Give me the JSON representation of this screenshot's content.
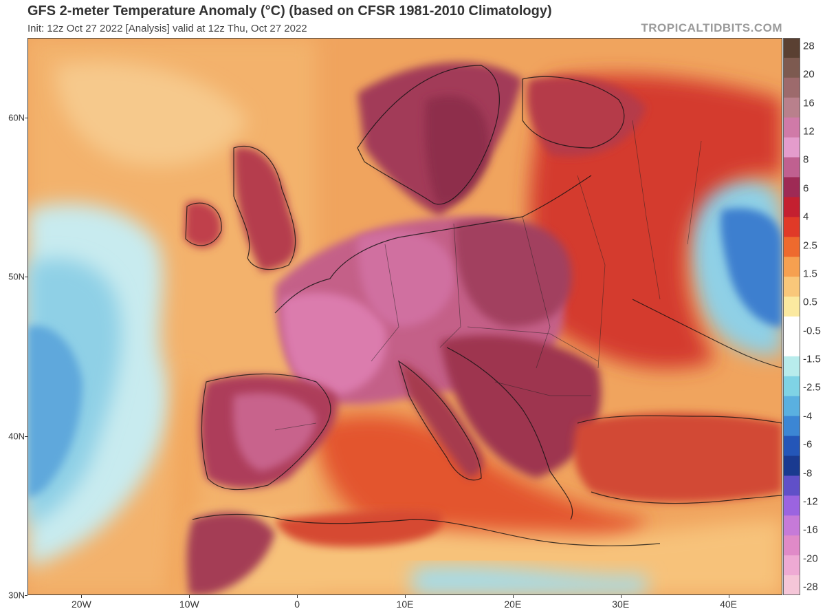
{
  "header": {
    "title": "GFS 2-meter Temperature Anomaly (°C) (based on CFSR 1981-2010 Climatology)",
    "subtitle": "Init: 12z Oct 27 2022   [Analysis]   valid at 12z Thu, Oct 27 2022",
    "brand": "TROPICALTIDBITS.COM"
  },
  "map": {
    "extent": {
      "lon": [
        -25,
        45
      ],
      "lat": [
        30,
        65
      ]
    },
    "lat_ticks": [
      {
        "value": 60,
        "label": "60N"
      },
      {
        "value": 50,
        "label": "50N"
      },
      {
        "value": 40,
        "label": "40N"
      },
      {
        "value": 30,
        "label": "30N"
      }
    ],
    "lon_ticks": [
      {
        "value": -20,
        "label": "20W"
      },
      {
        "value": -10,
        "label": "10W"
      },
      {
        "value": 0,
        "label": "0"
      },
      {
        "value": 10,
        "label": "10E"
      },
      {
        "value": 20,
        "label": "20E"
      },
      {
        "value": 30,
        "label": "30E"
      },
      {
        "value": 40,
        "label": "40E"
      }
    ]
  },
  "colorbar": {
    "labels": [
      "28",
      "20",
      "16",
      "12",
      "8",
      "6",
      "4",
      "2.5",
      "1.5",
      "0.5",
      "-0.5",
      "-1.5",
      "-2.5",
      "-4",
      "-6",
      "-8",
      "-12",
      "-16",
      "-20",
      "-28"
    ],
    "colors": [
      "#5a4032",
      "#7d5a50",
      "#9d6a6c",
      "#b9808c",
      "#d07aa8",
      "#e49ccc",
      "#c06090",
      "#9e2a55",
      "#c42030",
      "#e03a28",
      "#ee6a2e",
      "#f6a050",
      "#f9c77a",
      "#fbe9a0",
      "#ffffff",
      "#ffffff",
      "#b8ecec",
      "#7fd3e5",
      "#5ab0e0",
      "#3c86d4",
      "#2456b8",
      "#1a3a90",
      "#6050c8",
      "#9b64e0",
      "#c67ad8",
      "#e08ac8",
      "#eeaad4",
      "#f5c6d8"
    ]
  },
  "scene": {
    "ocean_palette": [
      "#f3a260",
      "#f0b873",
      "#f6cf8e",
      "#bfe6ec",
      "#86cde5",
      "#5aa7dc"
    ],
    "land_hot_palette": [
      "#8e2a45",
      "#b2435f",
      "#c85a86",
      "#d672a4",
      "#9a3048"
    ]
  }
}
